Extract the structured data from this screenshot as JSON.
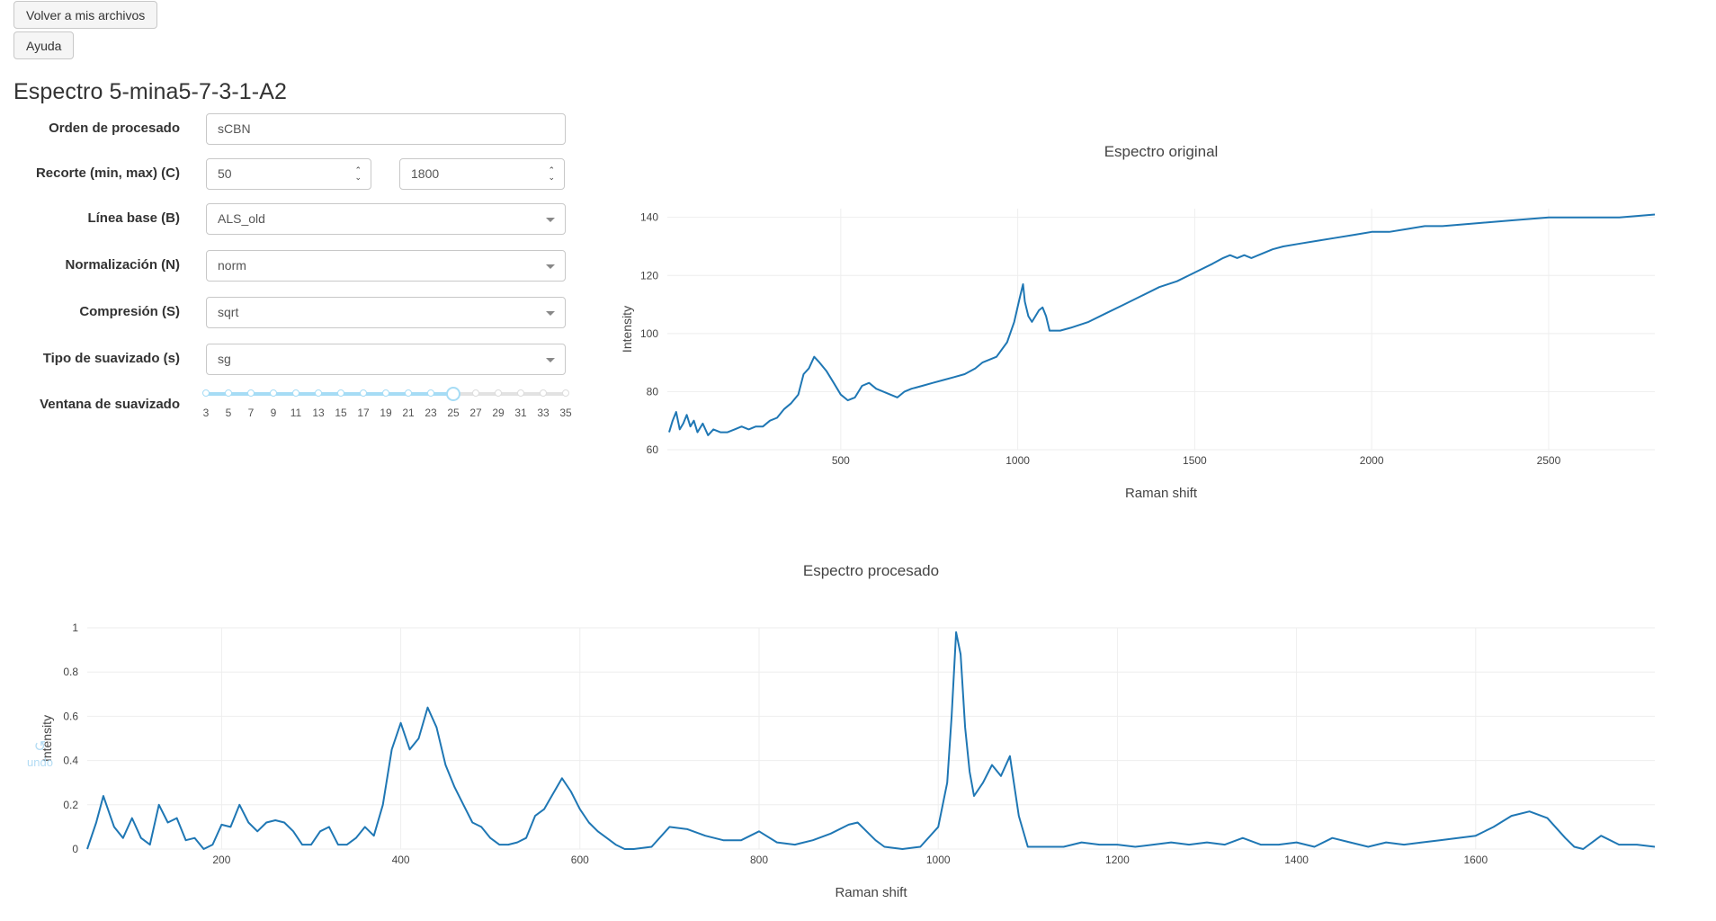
{
  "buttons": {
    "back": "Volver a mis archivos",
    "help": "Ayuda"
  },
  "title": "Espectro 5-mina5-7-3-1-A2",
  "form": {
    "processing_order": {
      "label": "Orden de procesado",
      "value": "sCBN"
    },
    "crop": {
      "label": "Recorte (min, max) (C)",
      "min": "50",
      "max": "1800"
    },
    "baseline": {
      "label": "Línea base (B)",
      "value": "ALS_old"
    },
    "normalization": {
      "label": "Normalización (N)",
      "value": "norm"
    },
    "compression": {
      "label": "Compresión (S)",
      "value": "sqrt"
    },
    "smoothing_type": {
      "label": "Tipo de suavizado (s)",
      "value": "sg"
    },
    "smoothing_window": {
      "label": "Ventana de suavizado",
      "ticks": [
        "3",
        "5",
        "7",
        "9",
        "11",
        "13",
        "15",
        "17",
        "19",
        "21",
        "23",
        "25",
        "27",
        "29",
        "31",
        "33",
        "35"
      ],
      "value": 25
    }
  },
  "undo": {
    "label": "undo",
    "icon": "undo-icon"
  },
  "colors": {
    "line": "#1f77b4",
    "accent": "#a6dcf5",
    "grid": "#eeeeee"
  },
  "chart_data": [
    {
      "type": "line",
      "title": "Espectro original",
      "xlabel": "Raman shift",
      "ylabel": "Intensity",
      "xlim": [
        10,
        2800
      ],
      "ylim": [
        60,
        143
      ],
      "xticks": [
        500,
        1000,
        1500,
        2000,
        2500
      ],
      "yticks": [
        60,
        80,
        100,
        120,
        140
      ],
      "grid": true,
      "series": [
        {
          "x": [
            15,
            25,
            35,
            45,
            55,
            65,
            75,
            85,
            95,
            110,
            125,
            140,
            160,
            180,
            200,
            220,
            240,
            260,
            280,
            300,
            320,
            340,
            360,
            380,
            395,
            410,
            425,
            440,
            460,
            480,
            500,
            520,
            540,
            560,
            580,
            600,
            620,
            640,
            660,
            680,
            700,
            730,
            760,
            790,
            820,
            850,
            880,
            900,
            940,
            970,
            990,
            1005,
            1015,
            1020,
            1030,
            1040,
            1050,
            1060,
            1070,
            1080,
            1090,
            1100,
            1120,
            1150,
            1200,
            1250,
            1300,
            1350,
            1400,
            1450,
            1500,
            1550,
            1580,
            1600,
            1620,
            1640,
            1660,
            1680,
            1700,
            1720,
            1750,
            1800,
            1850,
            1900,
            1950,
            2000,
            2050,
            2100,
            2150,
            2200,
            2300,
            2400,
            2500,
            2600,
            2700,
            2800
          ],
          "y": [
            66,
            70,
            73,
            67,
            69,
            72,
            68,
            70,
            66,
            69,
            65,
            67,
            66,
            66,
            67,
            68,
            67,
            68,
            68,
            70,
            71,
            74,
            76,
            79,
            86,
            88,
            92,
            90,
            87,
            83,
            79,
            77,
            78,
            82,
            83,
            81,
            80,
            79,
            78,
            80,
            81,
            82,
            83,
            84,
            85,
            86,
            88,
            90,
            92,
            97,
            104,
            112,
            117,
            111,
            106,
            104,
            106,
            108,
            109,
            106,
            101,
            101,
            101,
            102,
            104,
            107,
            110,
            113,
            116,
            118,
            121,
            124,
            126,
            127,
            126,
            127,
            126,
            127,
            128,
            129,
            130,
            131,
            132,
            133,
            134,
            135,
            135,
            136,
            137,
            137,
            138,
            139,
            140,
            140,
            140,
            141
          ]
        }
      ]
    },
    {
      "type": "line",
      "title": "Espectro procesado",
      "xlabel": "Raman shift",
      "ylabel": "Intensity",
      "xlim": [
        50,
        1800
      ],
      "ylim": [
        0,
        1.0
      ],
      "xticks": [
        200,
        400,
        600,
        800,
        1000,
        1200,
        1400,
        1600
      ],
      "yticks": [
        0,
        0.2,
        0.4,
        0.6,
        0.8,
        1
      ],
      "grid": true,
      "series": [
        {
          "x": [
            50,
            60,
            68,
            80,
            90,
            100,
            110,
            120,
            130,
            140,
            150,
            160,
            170,
            180,
            190,
            200,
            210,
            220,
            230,
            240,
            250,
            260,
            270,
            280,
            290,
            300,
            310,
            320,
            330,
            340,
            350,
            360,
            370,
            380,
            390,
            400,
            410,
            420,
            430,
            440,
            450,
            460,
            470,
            480,
            490,
            500,
            510,
            520,
            530,
            540,
            550,
            560,
            570,
            580,
            590,
            600,
            610,
            620,
            630,
            640,
            650,
            660,
            680,
            700,
            720,
            740,
            760,
            780,
            800,
            820,
            840,
            860,
            880,
            900,
            910,
            920,
            930,
            940,
            960,
            980,
            1000,
            1010,
            1015,
            1020,
            1025,
            1030,
            1035,
            1040,
            1050,
            1060,
            1070,
            1080,
            1090,
            1100,
            1120,
            1140,
            1160,
            1180,
            1200,
            1220,
            1240,
            1260,
            1280,
            1300,
            1320,
            1340,
            1360,
            1380,
            1400,
            1420,
            1440,
            1460,
            1480,
            1500,
            1520,
            1540,
            1560,
            1580,
            1600,
            1620,
            1640,
            1660,
            1680,
            1700,
            1710,
            1720,
            1730,
            1740,
            1760,
            1780,
            1800
          ],
          "y": [
            0,
            0.12,
            0.24,
            0.1,
            0.05,
            0.14,
            0.05,
            0.02,
            0.2,
            0.12,
            0.14,
            0.04,
            0.05,
            0,
            0.02,
            0.11,
            0.1,
            0.2,
            0.12,
            0.08,
            0.12,
            0.13,
            0.12,
            0.08,
            0.02,
            0.02,
            0.08,
            0.1,
            0.02,
            0.02,
            0.05,
            0.1,
            0.06,
            0.2,
            0.45,
            0.57,
            0.45,
            0.5,
            0.64,
            0.55,
            0.38,
            0.28,
            0.2,
            0.12,
            0.1,
            0.05,
            0.02,
            0.02,
            0.03,
            0.05,
            0.15,
            0.18,
            0.25,
            0.32,
            0.26,
            0.18,
            0.12,
            0.08,
            0.05,
            0.02,
            0,
            0,
            0.01,
            0.1,
            0.09,
            0.06,
            0.04,
            0.04,
            0.08,
            0.03,
            0.02,
            0.04,
            0.07,
            0.11,
            0.12,
            0.08,
            0.04,
            0.01,
            0,
            0.01,
            0.1,
            0.3,
            0.6,
            0.98,
            0.88,
            0.55,
            0.35,
            0.24,
            0.3,
            0.38,
            0.33,
            0.42,
            0.15,
            0.01,
            0.01,
            0.01,
            0.03,
            0.02,
            0.02,
            0.01,
            0.02,
            0.03,
            0.02,
            0.03,
            0.02,
            0.05,
            0.02,
            0.02,
            0.03,
            0.01,
            0.05,
            0.03,
            0.01,
            0.03,
            0.02,
            0.03,
            0.04,
            0.05,
            0.06,
            0.1,
            0.15,
            0.17,
            0.14,
            0.05,
            0.01,
            0,
            0.03,
            0.06,
            0.02,
            0.02,
            0.01
          ]
        }
      ]
    }
  ]
}
